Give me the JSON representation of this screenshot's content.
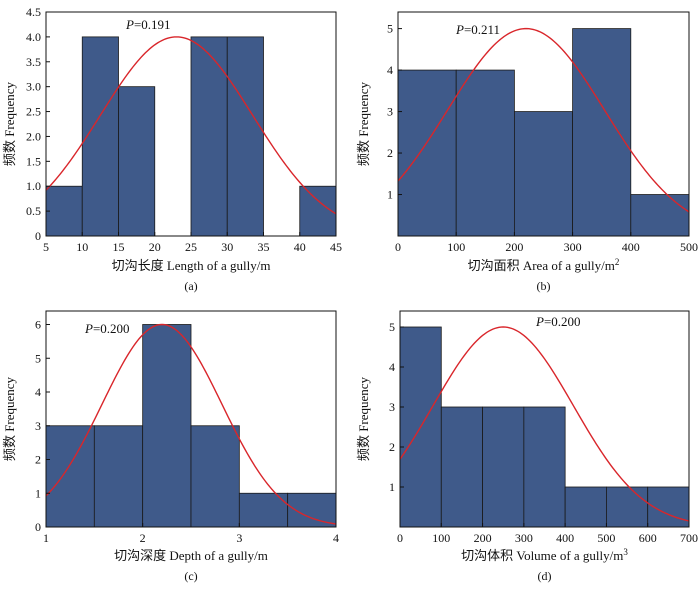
{
  "chart_data": [
    {
      "type": "bar",
      "panel": "(a)",
      "xlabel": "切沟长度 Length of a gully/m",
      "ylabel": "频数 Frequency",
      "p_label": "P",
      "p_value": "=0.191",
      "xlim": [
        5,
        45
      ],
      "ylim": [
        0,
        4.5
      ],
      "xticks": [
        "5",
        "10",
        "15",
        "20",
        "25",
        "30",
        "35",
        "40",
        "45"
      ],
      "yticks": [
        "0",
        "0.5",
        "1.0",
        "1.5",
        "2.0",
        "2.5",
        "3.0",
        "3.5",
        "4.0",
        "4.5"
      ],
      "bins": [
        [
          5,
          10
        ],
        [
          10,
          15
        ],
        [
          15,
          20
        ],
        [
          20,
          25
        ],
        [
          25,
          30
        ],
        [
          30,
          35
        ],
        [
          35,
          40
        ],
        [
          40,
          45
        ]
      ],
      "values": [
        1,
        4,
        3,
        0,
        4,
        4,
        0,
        1
      ],
      "normal_curve": {
        "mean": 23,
        "sd": 10.5,
        "peak": 4.0
      }
    },
    {
      "type": "bar",
      "panel": "(b)",
      "xlabel": "切沟面积 Area of a gully/m",
      "xlabel_sup": "2",
      "ylabel": "频数 Frequency",
      "p_label": "P",
      "p_value": "=0.211",
      "xlim": [
        0,
        500
      ],
      "ylim": [
        0,
        5.4
      ],
      "xticks": [
        "0",
        "100",
        "200",
        "300",
        "400",
        "500"
      ],
      "yticks": [
        "1",
        "2",
        "3",
        "4",
        "5"
      ],
      "bins": [
        [
          0,
          100
        ],
        [
          100,
          200
        ],
        [
          200,
          300
        ],
        [
          300,
          400
        ],
        [
          400,
          500
        ]
      ],
      "values": [
        4,
        4,
        3,
        5,
        1
      ],
      "normal_curve": {
        "mean": 220,
        "sd": 135,
        "peak": 5.0
      }
    },
    {
      "type": "bar",
      "panel": "(c)",
      "xlabel": "切沟深度 Depth of a gully/m",
      "ylabel": "频数 Frequency",
      "p_label": "P",
      "p_value": "=0.200",
      "xlim": [
        1,
        4
      ],
      "ylim": [
        0,
        6.4
      ],
      "xticks": [
        "1",
        "2",
        "3",
        "4"
      ],
      "yticks": [
        "0",
        "1",
        "2",
        "3",
        "4",
        "5",
        "6"
      ],
      "bins": [
        [
          1,
          1.5
        ],
        [
          1.5,
          2
        ],
        [
          2,
          2.5
        ],
        [
          2.5,
          3
        ],
        [
          3,
          3.5
        ],
        [
          3.5,
          4
        ]
      ],
      "values": [
        3,
        3,
        6,
        3,
        1,
        1
      ],
      "normal_curve": {
        "mean": 2.2,
        "sd": 0.62,
        "peak": 6.0
      }
    },
    {
      "type": "bar",
      "panel": "(d)",
      "xlabel": "切沟体积 Volume of a gully/m",
      "xlabel_sup": "3",
      "ylabel": "频数 Frequency",
      "p_label": "P",
      "p_value": "=0.200",
      "xlim": [
        0,
        700
      ],
      "ylim": [
        0,
        5.4
      ],
      "xticks": [
        "0",
        "100",
        "200",
        "300",
        "400",
        "500",
        "600",
        "700"
      ],
      "yticks": [
        "1",
        "2",
        "3",
        "4",
        "5"
      ],
      "bins": [
        [
          0,
          100
        ],
        [
          100,
          200
        ],
        [
          200,
          300
        ],
        [
          300,
          400
        ],
        [
          400,
          500
        ],
        [
          500,
          600
        ],
        [
          600,
          700
        ]
      ],
      "values": [
        5,
        3,
        3,
        3,
        1,
        1,
        1
      ],
      "normal_curve": {
        "mean": 250,
        "sd": 170,
        "peak": 5.0
      }
    }
  ],
  "colors": {
    "bar_fill": "#3f5a8a",
    "bar_edge": "#1a1a1a",
    "curve": "#d9262b",
    "axis": "#111111"
  }
}
